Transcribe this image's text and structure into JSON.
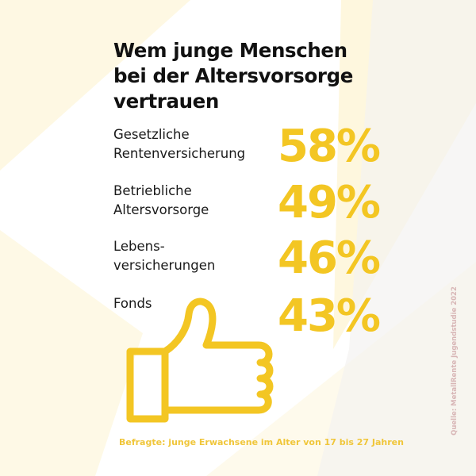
{
  "header": {
    "title_lines": [
      "Wem junge Menschen",
      "bei der Altersvorsorge",
      "vertrauen"
    ]
  },
  "chart_data": {
    "type": "table",
    "title": "Wem junge Menschen bei der Altersvorsorge vertrauen",
    "categories": [
      "Gesetzliche\nRentenversicherung",
      "Betriebliche\nAltersvorsorge",
      "Lebens-\nversicherungen",
      "Fonds"
    ],
    "values": [
      58,
      49,
      46,
      43
    ],
    "value_labels": [
      "58%",
      "49%",
      "46%",
      "43%"
    ],
    "unit": "%"
  },
  "footer": {
    "note": "Befragte: junge Erwachsene im Alter von 17 bis 27 Jahren",
    "source": "Quelle: MetallRente Jugendstudie 2022"
  },
  "icons": {
    "thumb": "thumbs-up-icon"
  },
  "colors": {
    "accent": "#f3c623",
    "title": "#111111",
    "text": "#1a1a1a",
    "note": "#f0c63a",
    "source": "#d8b6b6",
    "beam": "#fdf3cc",
    "shade": "#f4f2f1"
  }
}
